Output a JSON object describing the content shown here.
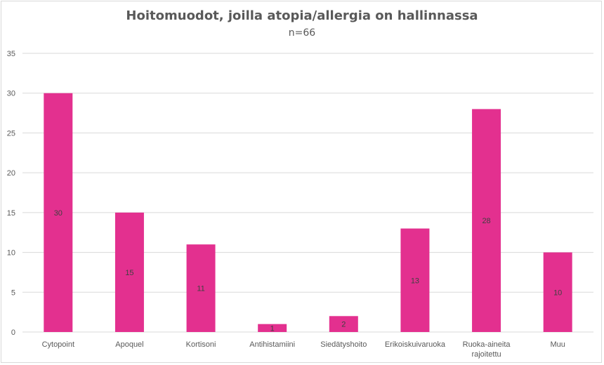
{
  "chart_data": {
    "type": "bar",
    "title": "Hoitomuodot, joilla atopia/allergia on hallinnassa",
    "subtitle": "n=66",
    "categories": [
      "Cytopoint",
      "Apoquel",
      "Kortisoni",
      "Antihistamiini",
      "Siedätyshoito",
      "Erikoiskuivaruoka",
      "Ruoka-aineita rajoitettu",
      "Muu"
    ],
    "category_lines": [
      [
        "Cytopoint"
      ],
      [
        "Apoquel"
      ],
      [
        "Kortisoni"
      ],
      [
        "Antihistamiini"
      ],
      [
        "Siedätyshoito"
      ],
      [
        "Erikoiskuivaruoka"
      ],
      [
        "Ruoka-aineita",
        "rajoitettu"
      ],
      [
        "Muu"
      ]
    ],
    "values": [
      30,
      15,
      11,
      1,
      2,
      13,
      28,
      10
    ],
    "ylim": [
      0,
      35
    ],
    "yticks": [
      0,
      5,
      10,
      15,
      20,
      25,
      30,
      35
    ],
    "grid": true,
    "legend": "none",
    "bar_color": "#E3308F",
    "grid_color": "#d9d9d9",
    "text_color": "#595959"
  }
}
